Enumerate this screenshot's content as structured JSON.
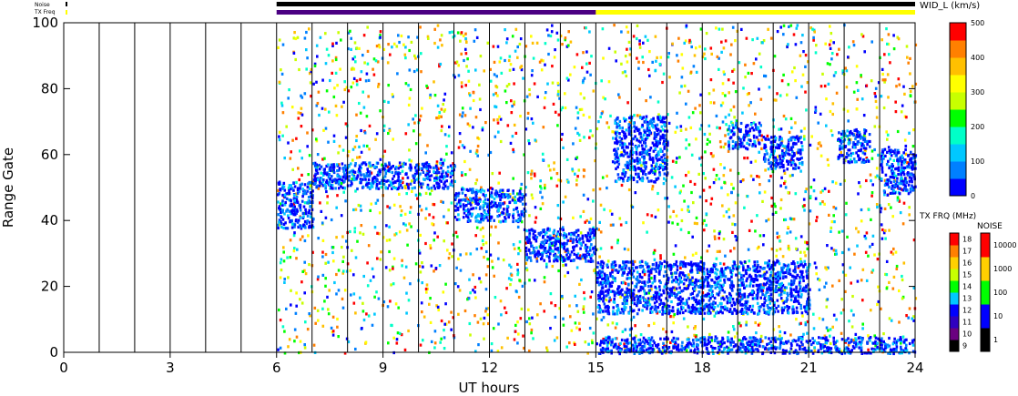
{
  "chart_data": [
    {
      "type": "heatmap",
      "xlabel": "UT hours",
      "ylabel": "Range Gate",
      "xlim": [
        0,
        24
      ],
      "ylim": [
        0,
        100
      ],
      "x_ticks": [
        "0",
        "3",
        "6",
        "9",
        "12",
        "15",
        "18",
        "21",
        "24"
      ],
      "y_ticks": [
        "0",
        "20",
        "40",
        "60",
        "80",
        "100"
      ],
      "x_tick_values": [
        0,
        3,
        6,
        9,
        12,
        15,
        18,
        21,
        24
      ],
      "y_tick_values": [
        0,
        20,
        40,
        60,
        80,
        100
      ],
      "hour_lines": [
        1,
        2,
        3,
        4,
        5,
        6,
        7,
        8,
        9,
        10,
        11,
        12,
        13,
        14,
        15,
        16,
        17,
        18,
        19,
        20,
        21,
        22,
        23
      ],
      "data_start_hour": 6,
      "grid": false,
      "colorscale": "width",
      "clim": [
        0,
        500
      ],
      "bands": [
        {
          "x": [
            6.0,
            7.0
          ],
          "y": [
            38,
            52
          ],
          "level": "low"
        },
        {
          "x": [
            7.0,
            11.0
          ],
          "y": [
            50,
            58
          ],
          "level": "low"
        },
        {
          "x": [
            11.0,
            13.0
          ],
          "y": [
            40,
            50
          ],
          "level": "low"
        },
        {
          "x": [
            13.0,
            15.0
          ],
          "y": [
            28,
            38
          ],
          "level": "low"
        },
        {
          "x": [
            15.0,
            21.0
          ],
          "y": [
            12,
            28
          ],
          "level": "low"
        },
        {
          "x": [
            15.0,
            24.0
          ],
          "y": [
            0,
            5
          ],
          "level": "low"
        },
        {
          "x": [
            15.5,
            17.0
          ],
          "y": [
            52,
            72
          ],
          "level": "low"
        },
        {
          "x": [
            18.7,
            19.6
          ],
          "y": [
            62,
            70
          ],
          "level": "low"
        },
        {
          "x": [
            19.7,
            20.8
          ],
          "y": [
            56,
            66
          ],
          "level": "low"
        },
        {
          "x": [
            21.8,
            22.7
          ],
          "y": [
            58,
            68
          ],
          "level": "low"
        },
        {
          "x": [
            23.0,
            24.0
          ],
          "y": [
            48,
            62
          ],
          "level": "low"
        }
      ]
    },
    {
      "type": "bar",
      "name": "status-strips",
      "labels": [
        "Noise",
        "TX Freq"
      ],
      "noise": {
        "x": [
          6,
          24
        ],
        "color": "#000000"
      },
      "txfreq": [
        {
          "x": [
            6,
            15
          ],
          "color": "#4b0082"
        },
        {
          "x": [
            15,
            24
          ],
          "color": "#ffff00"
        }
      ]
    },
    {
      "type": "heatmap",
      "name": "width-colorbar",
      "title": "WID_L (km/s)",
      "ticks": [
        "0",
        "100",
        "200",
        "300",
        "400",
        "500"
      ],
      "tick_values": [
        0,
        100,
        200,
        300,
        400,
        500
      ],
      "range": [
        0,
        500
      ],
      "colors": [
        "#0000ff",
        "#0080ff",
        "#00c8ff",
        "#00ffc8",
        "#00ff00",
        "#c8ff00",
        "#ffff00",
        "#ffc000",
        "#ff8000",
        "#ff0000"
      ]
    },
    {
      "type": "heatmap",
      "name": "txfreq-colorbar",
      "title": "TX FRQ (MHz)",
      "ticks": [
        "9",
        "10",
        "11",
        "12",
        "13",
        "14",
        "15",
        "16",
        "17",
        "18"
      ],
      "colors": [
        "#000000",
        "#6a0080",
        "#3000c0",
        "#0000ff",
        "#00c8ff",
        "#00ff00",
        "#c8ff00",
        "#ffd000",
        "#ff8000",
        "#ff0000"
      ]
    },
    {
      "type": "heatmap",
      "name": "noise-colorbar",
      "title": "NOISE",
      "ticks": [
        "1",
        "10",
        "100",
        "1000",
        "10000"
      ],
      "colors": [
        "#000000",
        "#0000ff",
        "#00ff00",
        "#ffd000",
        "#ff0000"
      ]
    }
  ]
}
